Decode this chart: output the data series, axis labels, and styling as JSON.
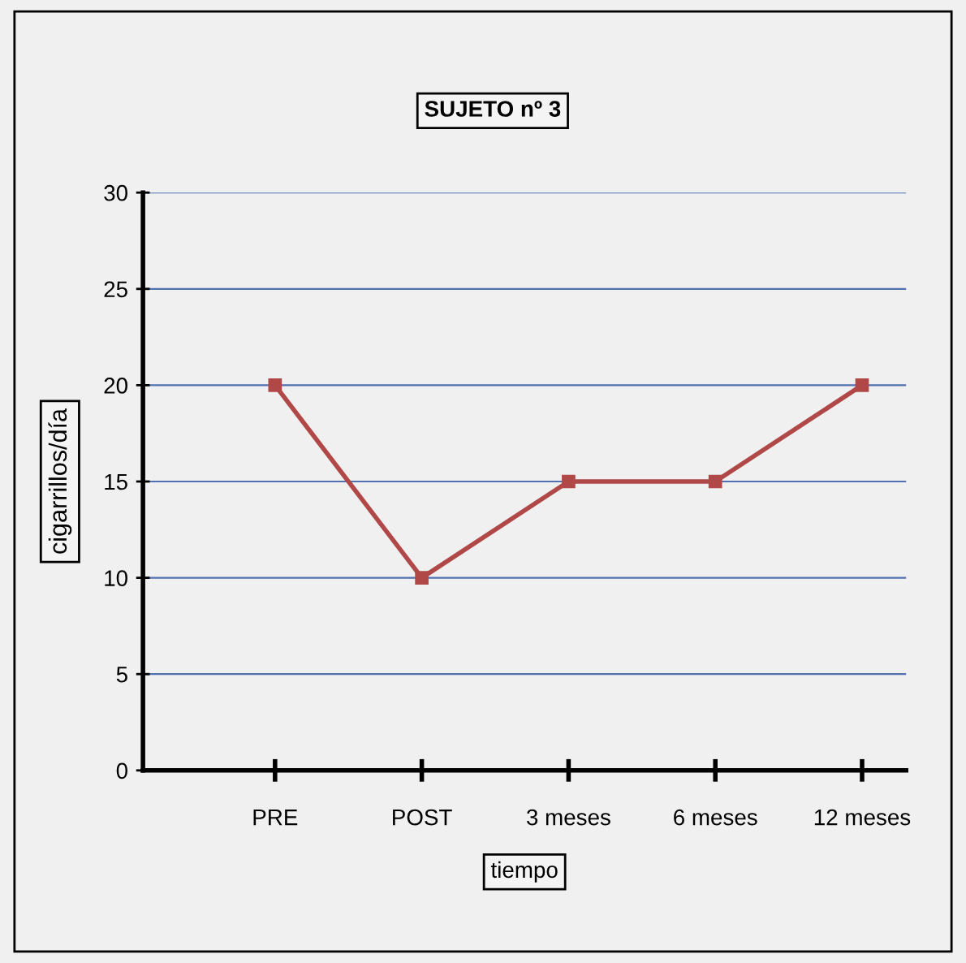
{
  "chart_data": {
    "type": "line",
    "title": "SUJETO nº 3",
    "xlabel": "tiempo",
    "ylabel": "cigarrillos/día",
    "categories": [
      "PRE",
      "POST",
      "3 meses",
      "6 meses",
      "12 meses"
    ],
    "series": [
      {
        "color": "#b04848",
        "values": [
          20,
          10,
          15,
          15,
          20
        ]
      }
    ],
    "ylim": [
      0,
      30
    ],
    "yticks": [
      0,
      5,
      10,
      15,
      20,
      25,
      30
    ],
    "grid": "y",
    "marker": "square",
    "line_style": "solid",
    "legend": false
  }
}
